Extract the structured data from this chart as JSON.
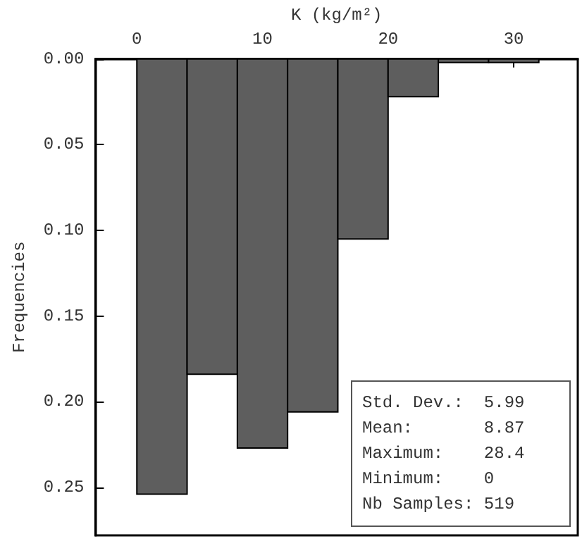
{
  "chart_data": {
    "type": "histogram",
    "xlabel": "K (kg/m²)",
    "ylabel": "Frequencies",
    "bins": [
      0,
      4,
      8,
      12,
      16,
      20,
      24,
      28,
      32
    ],
    "values": [
      0.254,
      0.184,
      0.227,
      0.206,
      0.105,
      0.022,
      0.002,
      0.002
    ],
    "color": "#5e5e5e",
    "xlim": [
      -3.3,
      35.1
    ],
    "xticks": [
      0,
      10,
      20,
      30
    ],
    "ylim": [
      0.278,
      0
    ],
    "yticks": [
      {
        "value": 0,
        "label": "0.00"
      },
      {
        "value": 0.05,
        "label": "0.05"
      },
      {
        "value": 0.1,
        "label": "0.10"
      },
      {
        "value": 0.15,
        "label": "0.15"
      },
      {
        "value": 0.2,
        "label": "0.20"
      },
      {
        "value": 0.25,
        "label": "0.25"
      }
    ],
    "grid": false,
    "annotations": [
      "Std. Dev.:  5.99",
      "Mean:       8.87",
      "Maximum:    28.4",
      "Minimum:    0",
      "Nb Samples: 519"
    ]
  }
}
